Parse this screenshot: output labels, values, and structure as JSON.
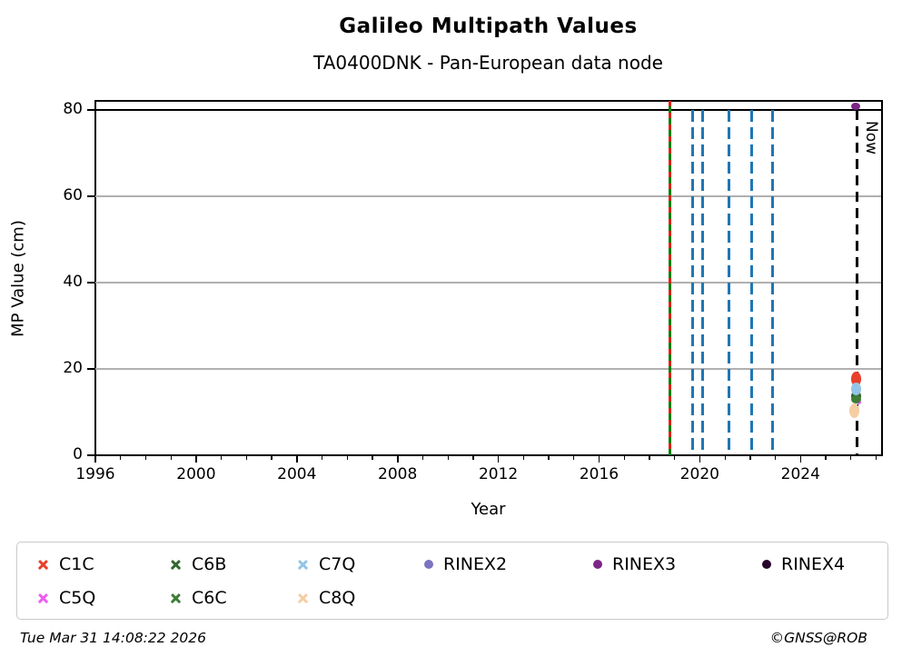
{
  "header": {
    "title": "Galileo Multipath Values",
    "subtitle": "TA0400DNK - Pan-European data node"
  },
  "footer": {
    "timestamp": "Tue Mar 31 14:08:22 2026",
    "credit": "©GNSS@ROB"
  },
  "chart_data": {
    "type": "scatter",
    "title": "Galileo Multipath Values",
    "subtitle": "TA0400DNK - Pan-European data node",
    "xlabel": "Year",
    "ylabel": "MP Value (cm)",
    "xlim": [
      1996,
      2027.2
    ],
    "ylim": [
      0,
      82.1
    ],
    "xticks_major": [
      1996,
      2000,
      2004,
      2008,
      2012,
      2016,
      2020,
      2024
    ],
    "xticks_minor": [
      1997,
      1998,
      1999,
      2001,
      2002,
      2003,
      2005,
      2006,
      2007,
      2009,
      2010,
      2011,
      2013,
      2014,
      2015,
      2017,
      2018,
      2019,
      2021,
      2022,
      2023,
      2025,
      2026,
      2027
    ],
    "yticks": [
      0,
      20,
      40,
      60,
      80
    ],
    "grid_y": [
      20,
      40,
      60
    ],
    "grid_color": "#b0b0b0",
    "grid_on": true,
    "legend_position": "bottom",
    "hline": {
      "y": 80,
      "color": "#000000"
    },
    "vlines": [
      {
        "year": 2018.81,
        "style": "green-solid-red-dash",
        "color": "#108010",
        "color2": "#dd2318"
      },
      {
        "year": 2019.7,
        "style": "dashed",
        "color": "#1f77b4"
      },
      {
        "year": 2020.1,
        "style": "dashed",
        "color": "#1f77b4"
      },
      {
        "year": 2021.15,
        "style": "dashed",
        "color": "#1f77b4"
      },
      {
        "year": 2022.05,
        "style": "dashed",
        "color": "#1f77b4"
      },
      {
        "year": 2022.9,
        "style": "dashed",
        "color": "#1f77b4"
      }
    ],
    "now_line": {
      "year": 2026.25,
      "label": "Now",
      "color": "#000000",
      "style": "dashed"
    },
    "series": [
      {
        "name": "C1C",
        "color": "#e8402c",
        "marker": "x",
        "x": 2026.2,
        "y": 17.7,
        "y_spread": 3.2
      },
      {
        "name": "C5Q",
        "color": "#ef5cef",
        "marker": "x",
        "x": 2026.3,
        "y": 12.4,
        "y_spread": 0.9
      },
      {
        "name": "C6B",
        "color": "#33662e",
        "marker": "x",
        "x": 2026.2,
        "y": 13.7,
        "y_spread": 2.6
      },
      {
        "name": "C6C",
        "color": "#3f7d37",
        "marker": "x",
        "x": 2026.2,
        "y": 12.9,
        "y_spread": 2.0
      },
      {
        "name": "C7Q",
        "color": "#92c5e8",
        "marker": "x",
        "x": 2026.2,
        "y": 15.4,
        "y_spread": 3.0
      },
      {
        "name": "C8Q",
        "color": "#f6cda3",
        "marker": "x",
        "x": 2026.15,
        "y": 10.3,
        "y_spread": 3.4
      },
      {
        "name": "RINEX2",
        "color": "#7b74c1",
        "marker": "dot",
        "x": null,
        "y": null,
        "y_spread": 0
      },
      {
        "name": "RINEX3",
        "color": "#7b2585",
        "marker": "dot",
        "x": 2026.2,
        "y": 80.8,
        "y_spread": 0
      },
      {
        "name": "RINEX4",
        "color": "#26062b",
        "marker": "dot",
        "x": null,
        "y": null,
        "y_spread": 0
      }
    ]
  },
  "legend": {
    "items": [
      {
        "label": "C1C",
        "color": "#e8402c",
        "marker": "x",
        "row": 0,
        "col": 0
      },
      {
        "label": "C5Q",
        "color": "#ef5cef",
        "marker": "x",
        "row": 1,
        "col": 0
      },
      {
        "label": "C6B",
        "color": "#33662e",
        "marker": "x",
        "row": 0,
        "col": 1
      },
      {
        "label": "C6C",
        "color": "#3f7d37",
        "marker": "x",
        "row": 1,
        "col": 1
      },
      {
        "label": "C7Q",
        "color": "#92c5e8",
        "marker": "x",
        "row": 0,
        "col": 2
      },
      {
        "label": "C8Q",
        "color": "#f6cda3",
        "marker": "x",
        "row": 1,
        "col": 2
      },
      {
        "label": "RINEX2",
        "color": "#7b74c1",
        "marker": "dot",
        "row": 0,
        "col": 3
      },
      {
        "label": "RINEX3",
        "color": "#7b2585",
        "marker": "dot",
        "row": 0,
        "col": 4
      },
      {
        "label": "RINEX4",
        "color": "#26062b",
        "marker": "dot",
        "row": 0,
        "col": 5
      }
    ]
  }
}
